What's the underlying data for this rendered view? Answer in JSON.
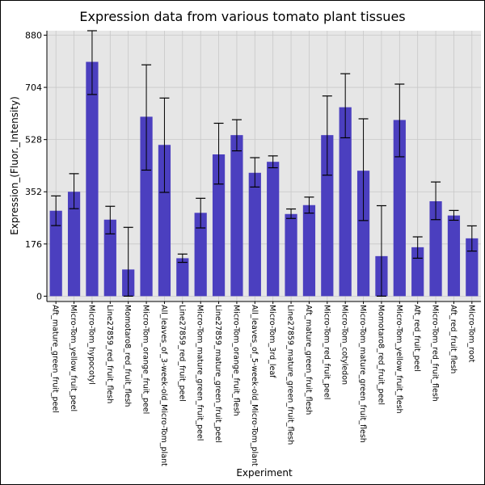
{
  "chart_data": {
    "type": "bar",
    "title": "Expression data from various tomato plant tissues",
    "xlabel": "Experiment",
    "ylabel": "Expression_(Fluor._Intensity)",
    "ylim": [
      -18,
      895
    ],
    "yticks": [
      0,
      176,
      352,
      528,
      704,
      880
    ],
    "grid": true,
    "bar_color": "#4b3fbf",
    "categories": [
      "Aft_mature_green_fruit_peel",
      "Micro-Tom_yellow_fruit_peel",
      "Micro-Tom_hypocotyl",
      "Line27859_red_fruit_flesh",
      "Momotaro8_red_fruit_flesh",
      "Micro-Tom_orange_fruit_peel",
      "All_leaves_of_3-week-old_Micro-Tom_plant",
      "Line27859_red_fruit_peel",
      "Micro-Tom_mature_green_fruit_peel",
      "Line27859_mature_green_fruit_peel",
      "Micro-Tom_orange_fruit_flesh",
      "All_leaves_of_5-week-old_Micro-Tom_plant",
      "Micro-Tom_3rd_leaf",
      "Line27859_mature_green_fruit_flesh",
      "Aft_mature_green_fruit_flesh",
      "Micro-Tom_red_fruit_peel",
      "Micro-Tom_cotyledon",
      "Micro-Tom_mature_green_fruit_flesh",
      "Momotaro8_red_fruit_peel",
      "Micro-Tom_yellow_fruit_flesh",
      "Aft_red_fruit_peel",
      "Micro-Tom_red_fruit_flesh",
      "Aft_red_fruit_flesh",
      "Micro-Tom_root"
    ],
    "values": [
      288,
      352,
      790,
      258,
      90,
      605,
      510,
      128,
      281,
      478,
      543,
      416,
      453,
      277,
      307,
      543,
      637,
      423,
      135,
      594,
      165,
      320,
      272,
      195
    ],
    "error_low": [
      238,
      295,
      680,
      210,
      0,
      425,
      350,
      114,
      230,
      378,
      490,
      368,
      433,
      262,
      280,
      408,
      534,
      255,
      0,
      470,
      128,
      258,
      256,
      152
    ],
    "error_high": [
      338,
      413,
      895,
      303,
      232,
      780,
      668,
      142,
      330,
      583,
      595,
      467,
      473,
      294,
      334,
      675,
      750,
      598,
      305,
      715,
      200,
      385,
      289,
      237
    ]
  }
}
